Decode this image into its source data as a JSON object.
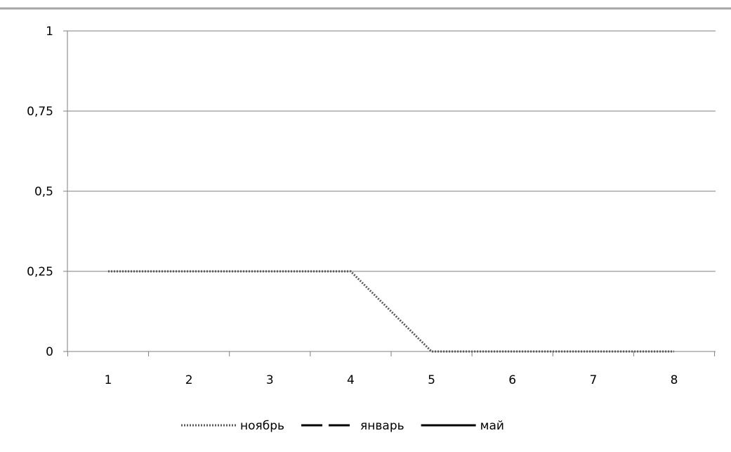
{
  "chart_data": {
    "type": "line",
    "title": "",
    "xlabel": "",
    "ylabel": "",
    "categories": [
      "1",
      "2",
      "3",
      "4",
      "5",
      "6",
      "7",
      "8"
    ],
    "x": [
      1,
      2,
      3,
      4,
      5,
      6,
      7,
      8
    ],
    "ylim": [
      0,
      1
    ],
    "y_ticks": [
      0,
      0.25,
      0.5,
      0.75,
      1
    ],
    "y_tick_labels": [
      "0",
      "0,25",
      "0,5",
      "0,75",
      "1"
    ],
    "grid": true,
    "legend_position": "bottom",
    "series": [
      {
        "name": "ноябрь",
        "style": "dotted",
        "color": "#595959",
        "values": [
          0.25,
          0.25,
          0.25,
          0.25,
          0,
          0,
          0,
          0
        ]
      },
      {
        "name": "январь",
        "style": "dashed",
        "color": "#000000",
        "values": [
          0,
          0,
          0,
          0,
          0,
          0,
          0,
          0
        ]
      },
      {
        "name": "май",
        "style": "solid",
        "color": "#000000",
        "values": [
          0,
          0,
          0,
          0,
          0,
          0,
          0,
          0
        ]
      }
    ]
  }
}
